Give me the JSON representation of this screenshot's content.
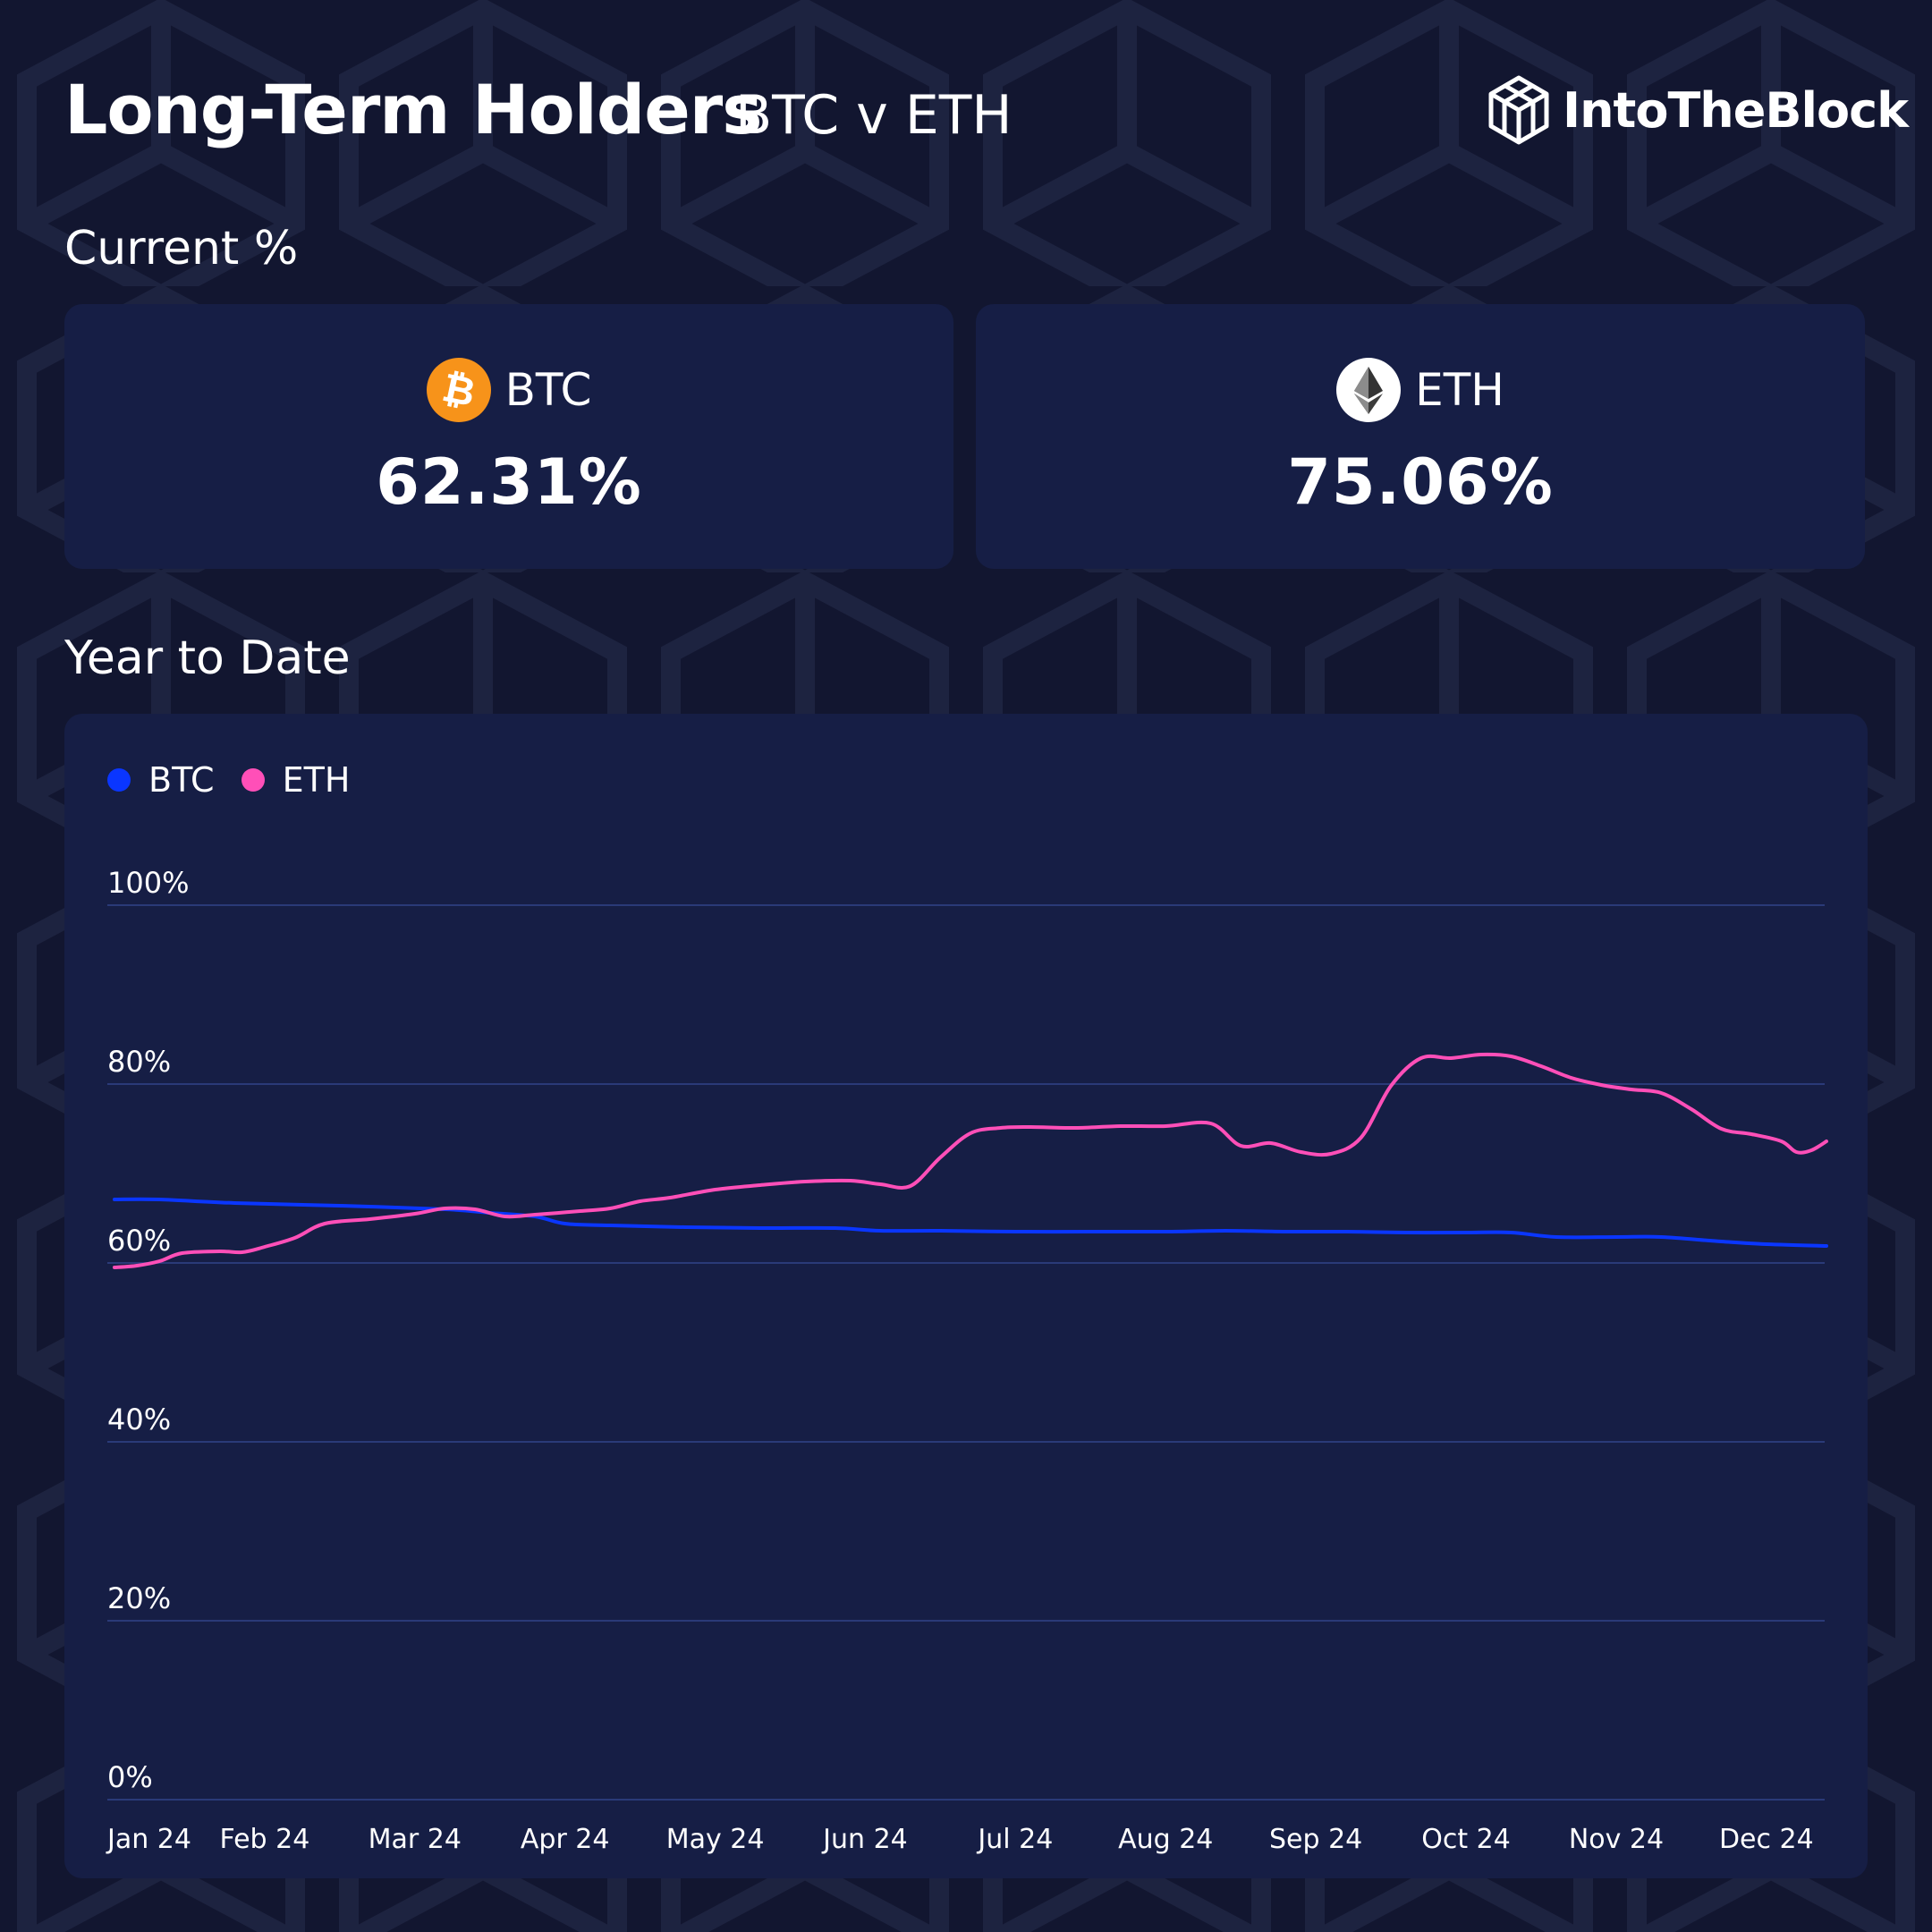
{
  "header": {
    "title": "Long-Term Holders",
    "subtitle": "BTC v ETH",
    "brand": "IntoTheBlock"
  },
  "sections": {
    "current": "Current %",
    "ytd": "Year to Date"
  },
  "cards": [
    {
      "symbol": "BTC",
      "value": "62.31%",
      "icon": "bitcoin-icon",
      "color": "#F7931A"
    },
    {
      "symbol": "ETH",
      "value": "75.06%",
      "icon": "ethereum-icon",
      "color": "#FFFFFF"
    }
  ],
  "colors": {
    "background": "#131833",
    "panel": "#161e45",
    "btc": "#0a36ff",
    "eth": "#ff4fb8",
    "grid": "#2a3a78"
  },
  "chart_data": {
    "type": "line",
    "legend_position": "top-left",
    "grid": true,
    "ylim": [
      0,
      100
    ],
    "y_ticks": [
      0,
      20,
      40,
      60,
      80,
      100
    ],
    "y_tick_labels": [
      "0%",
      "20%",
      "40%",
      "60%",
      "80%",
      "100%"
    ],
    "x_tick_labels": [
      "Jan 24",
      "Feb 24",
      "Mar 24",
      "Apr 24",
      "May 24",
      "Jun 24",
      "Jul 24",
      "Aug 24",
      "Sep 24",
      "Oct 24",
      "Nov 24",
      "Dec 24"
    ],
    "x_range": [
      0,
      11.4
    ],
    "series": [
      {
        "name": "BTC",
        "color": "#0a36ff",
        "x": [
          0,
          0.3,
          0.8,
          1.5,
          2.2,
          2.5,
          2.8,
          3.0,
          3.3,
          3.8,
          4.3,
          4.8,
          5.1,
          5.5,
          6.0,
          6.5,
          7.0,
          7.4,
          7.8,
          8.2,
          8.6,
          9.0,
          9.3,
          9.6,
          10.0,
          10.3,
          10.7,
          11.0,
          11.4
        ],
        "y": [
          67.1,
          67.1,
          66.7,
          66.4,
          66.0,
          65.6,
          65.2,
          64.4,
          64.2,
          64.0,
          63.9,
          63.9,
          63.6,
          63.6,
          63.5,
          63.5,
          63.5,
          63.6,
          63.5,
          63.5,
          63.4,
          63.4,
          63.4,
          62.9,
          62.9,
          62.9,
          62.4,
          62.1,
          61.9
        ]
      },
      {
        "name": "ETH",
        "color": "#ff4fb8",
        "x": [
          0,
          0.15,
          0.3,
          0.45,
          0.7,
          0.85,
          1.0,
          1.2,
          1.4,
          1.7,
          2.0,
          2.2,
          2.4,
          2.6,
          2.8,
          3.1,
          3.3,
          3.5,
          3.7,
          4.0,
          4.3,
          4.6,
          4.9,
          5.1,
          5.3,
          5.5,
          5.7,
          5.9,
          6.1,
          6.4,
          6.7,
          7.0,
          7.3,
          7.5,
          7.7,
          7.9,
          8.1,
          8.3,
          8.5,
          8.7,
          8.9,
          9.1,
          9.3,
          9.5,
          9.7,
          9.9,
          10.1,
          10.3,
          10.5,
          10.7,
          10.9,
          11.1,
          11.2,
          11.3,
          11.4
        ],
        "y": [
          59.5,
          59.7,
          60.2,
          61.1,
          61.3,
          61.2,
          61.8,
          62.8,
          64.4,
          64.9,
          65.5,
          66.1,
          66.0,
          65.2,
          65.4,
          65.8,
          66.1,
          66.9,
          67.3,
          68.2,
          68.7,
          69.1,
          69.2,
          68.8,
          68.6,
          71.8,
          74.5,
          75.1,
          75.2,
          75.1,
          75.3,
          75.3,
          75.6,
          73.1,
          73.4,
          72.4,
          72.2,
          74.0,
          79.8,
          82.9,
          82.9,
          83.3,
          83.1,
          82.0,
          80.7,
          79.9,
          79.4,
          79.0,
          77.2,
          75.0,
          74.4,
          73.6,
          72.4,
          72.6,
          73.6
        ]
      }
    ]
  }
}
